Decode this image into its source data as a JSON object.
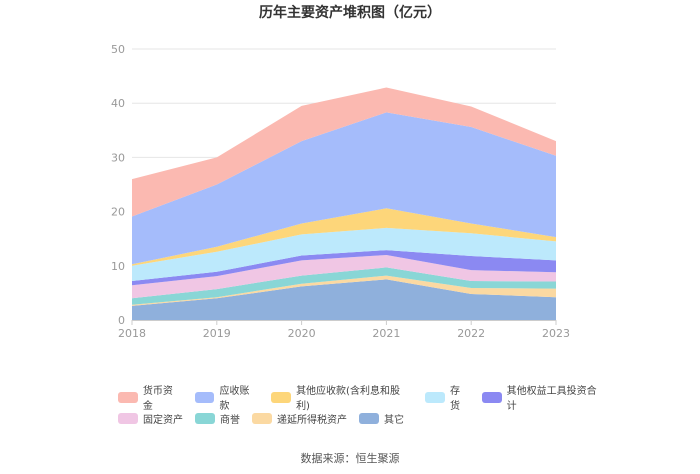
{
  "chart_data": {
    "type": "area",
    "stacked": true,
    "title": "历年主要资产堆积图（亿元）",
    "categories": [
      "2018",
      "2019",
      "2020",
      "2021",
      "2022",
      "2023"
    ],
    "ylim": [
      0,
      50
    ],
    "yticks": [
      "0",
      "10",
      "20",
      "30",
      "40",
      "50"
    ],
    "grid": true,
    "legend_position": "bottom",
    "series": [
      {
        "name": "其它",
        "color": "#8fb0dc",
        "values": [
          2.6,
          4.0,
          6.2,
          7.5,
          4.8,
          4.2
        ]
      },
      {
        "name": "递延所得税资产",
        "color": "#fbd9a2",
        "values": [
          0.2,
          0.2,
          0.5,
          0.7,
          1.1,
          1.6
        ]
      },
      {
        "name": "商誉",
        "color": "#89d6d6",
        "values": [
          1.2,
          1.5,
          1.5,
          1.5,
          1.3,
          1.3
        ]
      },
      {
        "name": "固定资产",
        "color": "#f0c6e4",
        "values": [
          2.4,
          2.4,
          2.8,
          2.3,
          2.0,
          1.7
        ]
      },
      {
        "name": "其他权益工具投资合计",
        "color": "#8b89f2",
        "values": [
          0.8,
          0.8,
          0.9,
          0.9,
          2.6,
          2.2
        ]
      },
      {
        "name": "存货",
        "color": "#bce9fc",
        "values": [
          2.8,
          3.7,
          3.9,
          4.1,
          4.2,
          3.5
        ]
      },
      {
        "name": "其他应收款(含利息和股利)",
        "color": "#fdd67a",
        "values": [
          0.3,
          0.9,
          2.0,
          3.6,
          1.8,
          0.8
        ]
      },
      {
        "name": "应收账款",
        "color": "#a5bcfb",
        "values": [
          8.8,
          11.5,
          15.2,
          17.7,
          17.8,
          15.0
        ]
      },
      {
        "name": "货币资金",
        "color": "#fbb9b1",
        "values": [
          6.9,
          5.0,
          6.5,
          4.6,
          3.8,
          2.7
        ]
      }
    ],
    "source": "数据来源：恒生聚源"
  },
  "legend": {
    "row1": [
      "货币资金",
      "应收账款",
      "其他应收款(含利息和股利)",
      "存货",
      "其他权益工具投资合计"
    ],
    "row2": [
      "固定资产",
      "商誉",
      "递延所得税资产",
      "其它"
    ]
  }
}
